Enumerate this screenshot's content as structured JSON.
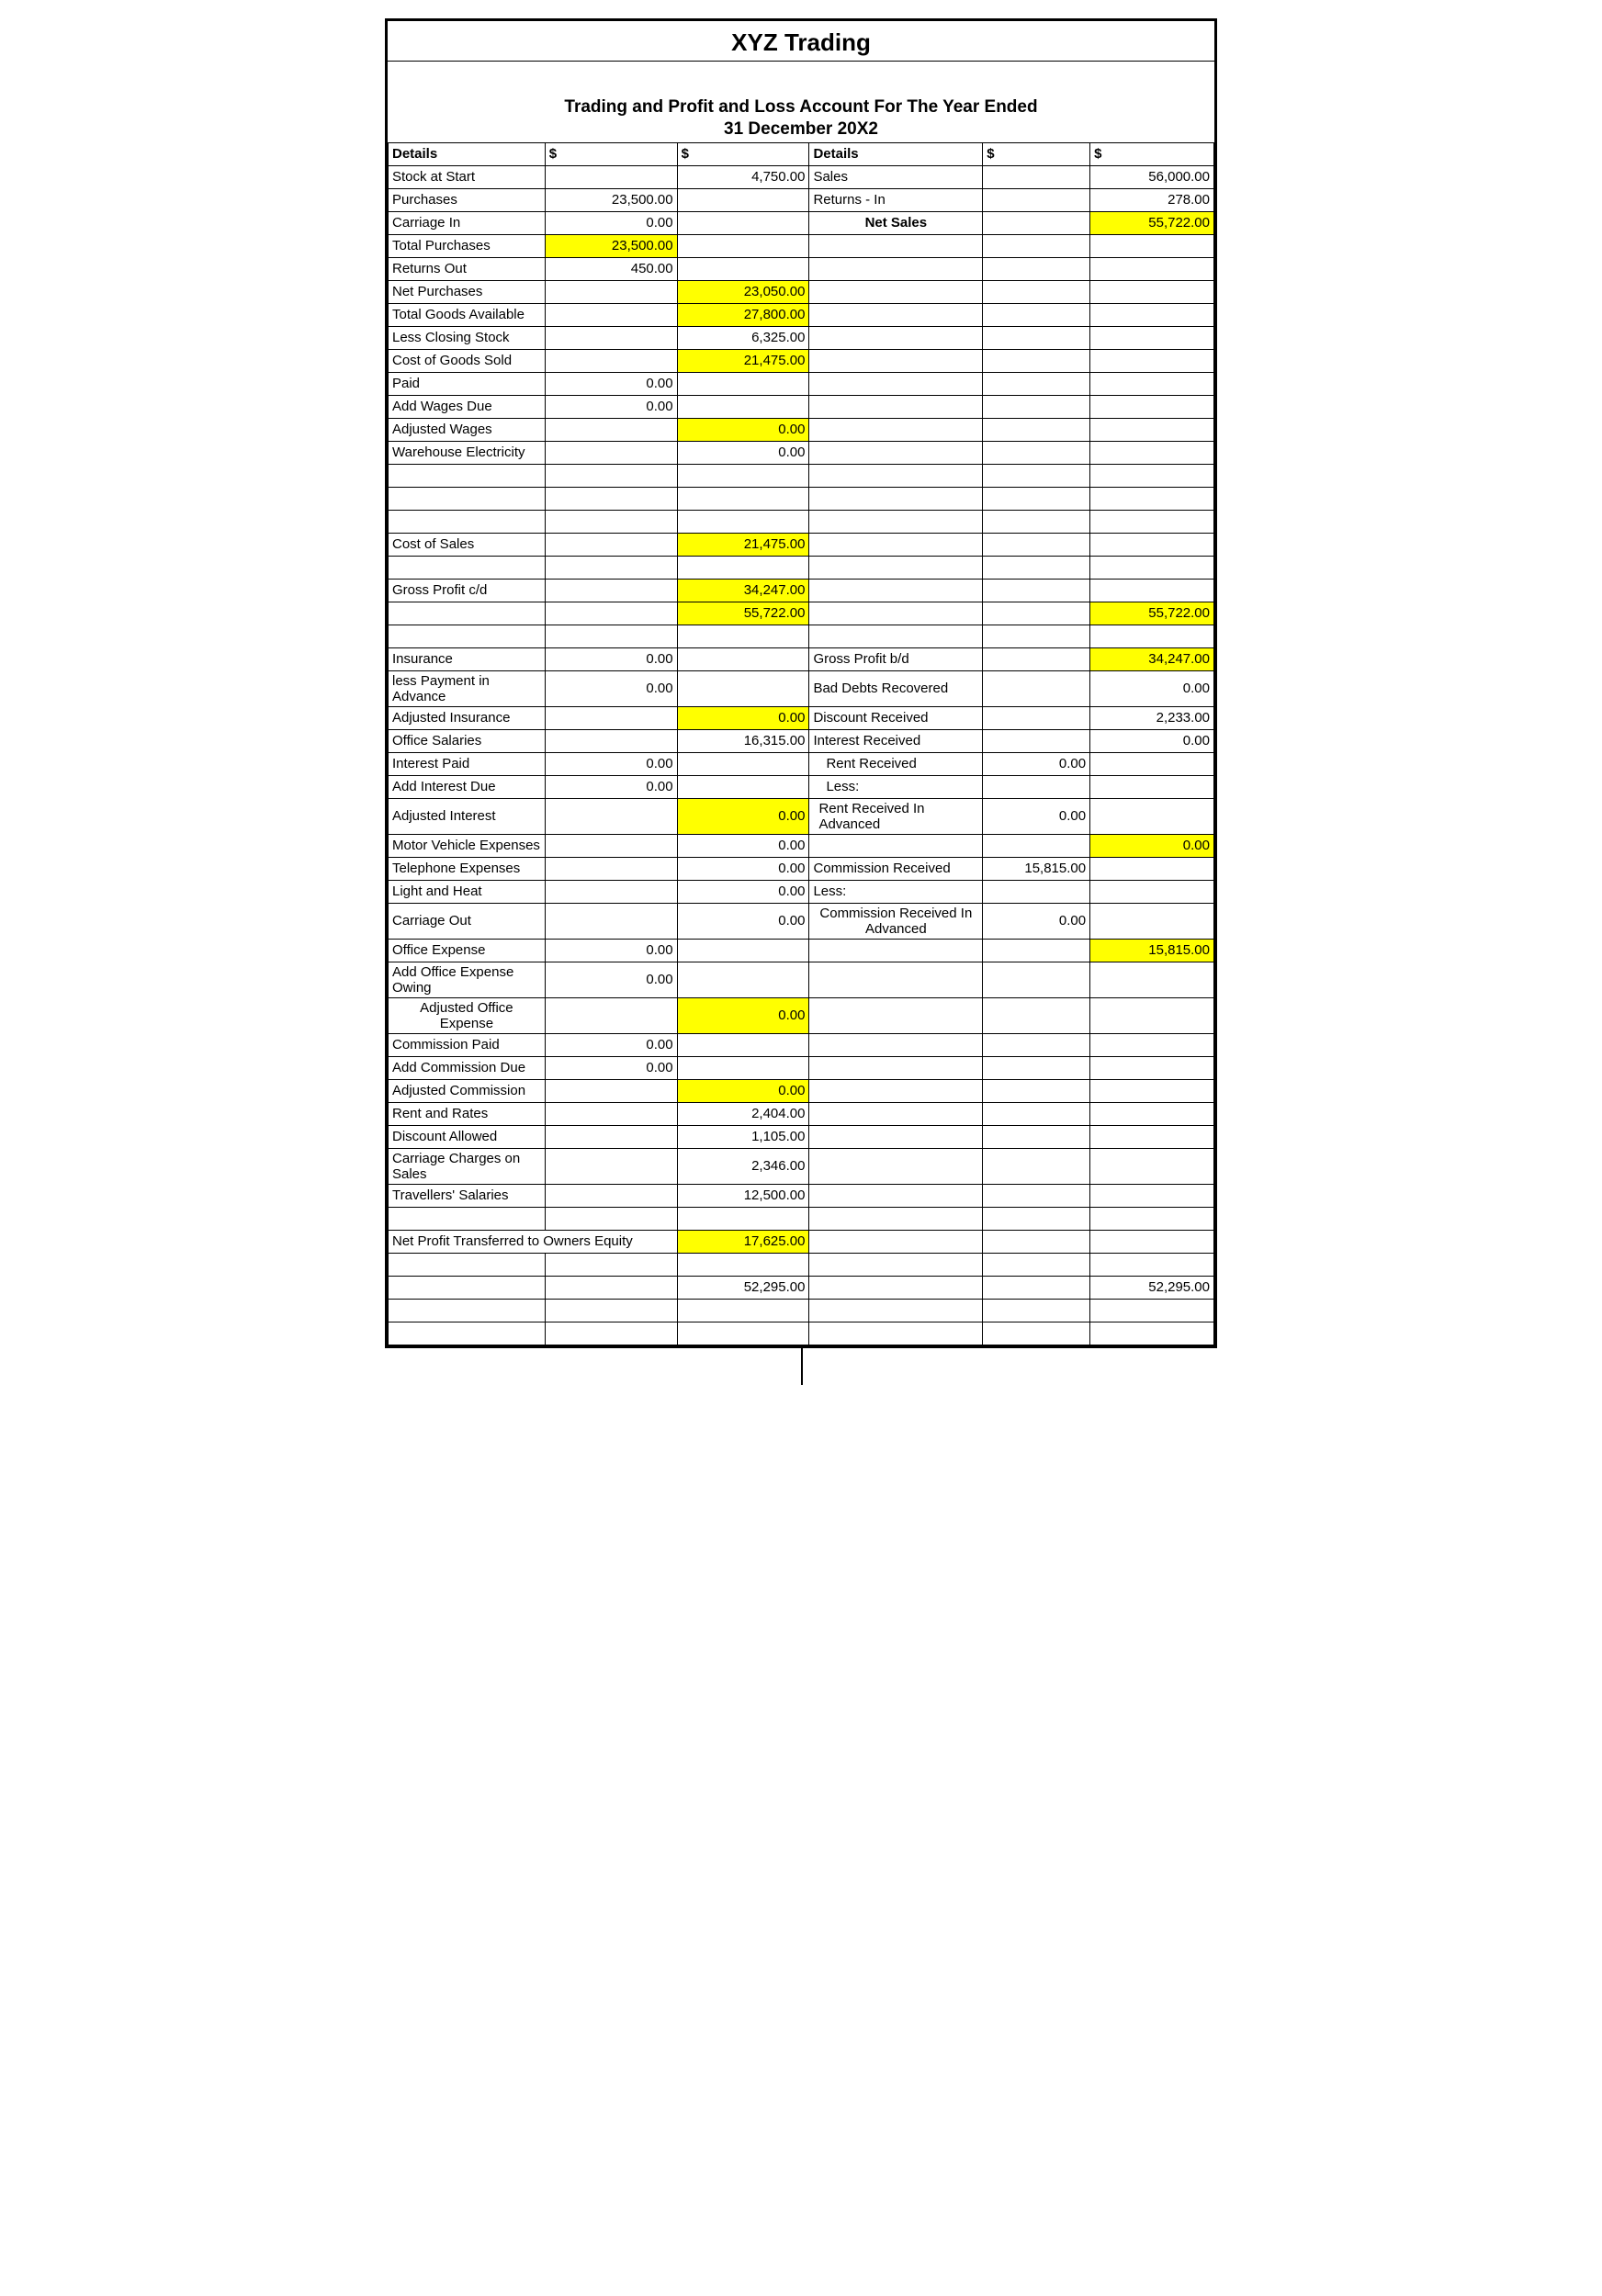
{
  "company": "XYZ Trading",
  "subtitle_line1": "Trading and Profit and Loss Account For The Year Ended",
  "subtitle_line2": "31 December 20X2",
  "headers": {
    "details": "Details",
    "dollar": "$"
  },
  "rows": [
    {
      "l": "Stock at Start",
      "a": "",
      "b": "4,750.00",
      "r": "Sales",
      "c": "",
      "d": "56,000.00"
    },
    {
      "l": "Purchases",
      "a": "23,500.00",
      "b": "",
      "r": "Returns - In",
      "c": "",
      "d": "278.00"
    },
    {
      "l": "Carriage In",
      "a": "0.00",
      "b": "",
      "r": "Net Sales",
      "r_bold_center": true,
      "c": "",
      "d": "55,722.00",
      "d_hl": true
    },
    {
      "l": "Total Purchases",
      "l_indent": 1,
      "a": "23,500.00",
      "a_hl": true,
      "b": "",
      "r": "",
      "c": "",
      "d": ""
    },
    {
      "l": "Returns Out",
      "a": "450.00",
      "b": "",
      "r": "",
      "c": "",
      "d": ""
    },
    {
      "l": "Net Purchases",
      "l_indent": 1,
      "a": "",
      "b": "23,050.00",
      "b_hl": true,
      "r": "",
      "c": "",
      "d": ""
    },
    {
      "l": "Total Goods Available",
      "l_indent": 2,
      "a": "",
      "b": "27,800.00",
      "b_hl": true,
      "r": "",
      "c": "",
      "d": ""
    },
    {
      "l": "Less Closing Stock",
      "a": "",
      "b": "6,325.00",
      "r": "",
      "c": "",
      "d": ""
    },
    {
      "l": "Cost of Goods Sold",
      "l_indent": 1,
      "a": "",
      "b": "21,475.00",
      "b_hl": true,
      "r": "",
      "c": "",
      "d": ""
    },
    {
      "l": "Paid",
      "a": "0.00",
      "b": "",
      "r": "",
      "c": "",
      "d": ""
    },
    {
      "l": "Add Wages Due",
      "a": "0.00",
      "b": "",
      "r": "",
      "c": "",
      "d": ""
    },
    {
      "l": "Adjusted Wages",
      "l_indent": 1,
      "a": "",
      "b": "0.00",
      "b_hl": true,
      "r": "",
      "c": "",
      "d": ""
    },
    {
      "l": "Warehouse Electricity",
      "a": "",
      "b": "0.00",
      "r": "",
      "c": "",
      "d": ""
    },
    {
      "l": "",
      "a": "",
      "b": "",
      "r": "",
      "c": "",
      "d": ""
    },
    {
      "l": "",
      "a": "",
      "b": "",
      "r": "",
      "c": "",
      "d": ""
    },
    {
      "l": "",
      "a": "",
      "b": "",
      "r": "",
      "c": "",
      "d": ""
    },
    {
      "l": "Cost of Sales",
      "l_indent": 1,
      "a": "",
      "b": "21,475.00",
      "b_hl": true,
      "r": "",
      "c": "",
      "d": ""
    },
    {
      "l": "",
      "a": "",
      "b": "",
      "r": "",
      "c": "",
      "d": ""
    },
    {
      "l": "Gross Profit c/d",
      "a": "",
      "b": "34,247.00",
      "b_hl": true,
      "r": "",
      "c": "",
      "d": ""
    },
    {
      "l": "",
      "a": "",
      "b": "55,722.00",
      "b_hl": true,
      "r": "",
      "c": "",
      "d": "55,722.00",
      "d_hl": true
    },
    {
      "l": "",
      "a": "",
      "b": "",
      "r": "",
      "c": "",
      "d": ""
    },
    {
      "l": "Insurance",
      "a": "0.00",
      "b": "",
      "r": "Gross Profit b/d",
      "c": "",
      "d": "34,247.00",
      "d_hl": true
    },
    {
      "l": "less Payment in Advance",
      "a": "0.00",
      "b": "",
      "r": "Bad Debts Recovered",
      "c": "",
      "d": "0.00"
    },
    {
      "l": "Adjusted Insurance",
      "l_indent": 1,
      "a": "",
      "b": "0.00",
      "b_hl": true,
      "r": "Discount Received",
      "c": "",
      "d": "2,233.00"
    },
    {
      "l": "Office Salaries",
      "a": "",
      "b": "16,315.00",
      "r": "Interest Received",
      "c": "",
      "d": "0.00"
    },
    {
      "l": "Interest Paid",
      "a": "0.00",
      "b": "",
      "r": "Rent Received",
      "r_indent": true,
      "c": "0.00",
      "d": ""
    },
    {
      "l": "Add Interest Due",
      "a": "0.00",
      "b": "",
      "r": "Less:",
      "r_indent": true,
      "c": "",
      "d": ""
    },
    {
      "l": "Adjusted Interest",
      "l_indent": 1,
      "a": "",
      "b": "0.00",
      "b_hl": true,
      "r": "Rent Received In Advanced",
      "r_indent2": true,
      "c": "0.00",
      "d": ""
    },
    {
      "l": "Motor Vehicle Expenses",
      "a": "",
      "b": "0.00",
      "r": "",
      "c": "",
      "d": "0.00",
      "d_hl": true
    },
    {
      "l": "Telephone Expenses",
      "a": "",
      "b": "0.00",
      "r": "Commission Received",
      "c": "15,815.00",
      "d": ""
    },
    {
      "l": "Light and Heat",
      "a": "",
      "b": "0.00",
      "r": "Less:",
      "c": "",
      "d": ""
    },
    {
      "l": "Carriage Out",
      "a": "",
      "b": "0.00",
      "r": "Commission Received In Advanced",
      "r_center": true,
      "c": "0.00",
      "d": ""
    },
    {
      "l": "Office Expense",
      "a": "0.00",
      "b": "",
      "r": "",
      "c": "",
      "d": "15,815.00",
      "d_hl": true
    },
    {
      "l": "Add Office Expense Owing",
      "a": "0.00",
      "b": "",
      "r": "",
      "c": "",
      "d": ""
    },
    {
      "l": "Adjusted Office Expense",
      "l_center": true,
      "a": "",
      "b": "0.00",
      "b_hl": true,
      "r": "",
      "c": "",
      "d": ""
    },
    {
      "l": "Commission Paid",
      "a": "0.00",
      "b": "",
      "r": "",
      "c": "",
      "d": ""
    },
    {
      "l": "Add Commission Due",
      "a": "0.00",
      "b": "",
      "r": "",
      "c": "",
      "d": ""
    },
    {
      "l": "Adjusted Commission",
      "l_indent": 2,
      "a": "",
      "b": "0.00",
      "b_hl": true,
      "r": "",
      "c": "",
      "d": ""
    },
    {
      "l": "Rent and Rates",
      "a": "",
      "b": "2,404.00",
      "r": "",
      "c": "",
      "d": ""
    },
    {
      "l": "Discount Allowed",
      "a": "",
      "b": "1,105.00",
      "r": "",
      "c": "",
      "d": ""
    },
    {
      "l": "Carriage Charges on Sales",
      "a": "",
      "b": "2,346.00",
      "r": "",
      "c": "",
      "d": ""
    },
    {
      "l": "Travellers' Salaries",
      "a": "",
      "b": "12,500.00",
      "r": "",
      "c": "",
      "d": ""
    },
    {
      "l": "",
      "a": "",
      "b": "",
      "r": "",
      "c": "",
      "d": ""
    },
    {
      "l": "Net Profit Transferred to Owners Equity",
      "span2": true,
      "b": "17,625.00",
      "b_hl": true,
      "r": "",
      "c": "",
      "d": ""
    },
    {
      "l": "",
      "a": "",
      "b": "",
      "r": "",
      "c": "",
      "d": ""
    },
    {
      "l": "",
      "a": "",
      "b": "52,295.00",
      "r": "",
      "c": "",
      "d": "52,295.00"
    },
    {
      "l": "",
      "a": "",
      "b": "",
      "r": "",
      "c": "",
      "d": ""
    },
    {
      "l": "",
      "a": "",
      "b": "",
      "r": "",
      "c": "",
      "d": ""
    }
  ],
  "style": {
    "highlight_color": "#ffff00",
    "border_color": "#000000",
    "background_color": "#ffffff",
    "font_family": "Arial",
    "title_fontsize": 26,
    "subtitle_fontsize": 19,
    "cell_fontsize": 15
  }
}
